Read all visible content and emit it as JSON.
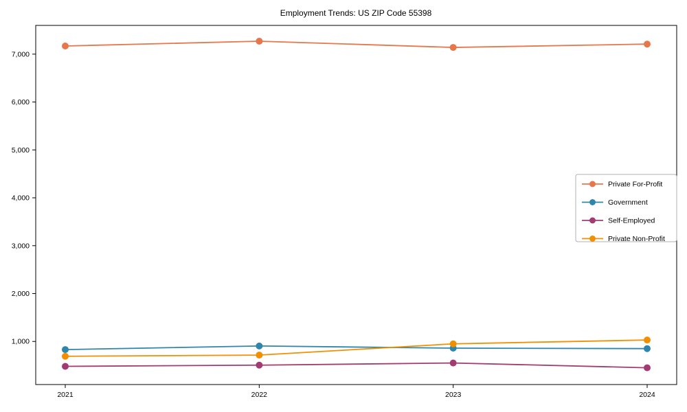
{
  "chart_data": {
    "type": "line",
    "title": "Employment Trends: US ZIP Code 55398",
    "x_labels": [
      "2021",
      "2022",
      "2023",
      "2024"
    ],
    "series": [
      {
        "name": "Private For-Profit",
        "color": "#e8764b",
        "values": [
          7170,
          7270,
          7140,
          7210
        ]
      },
      {
        "name": "Government",
        "color": "#2e86ab",
        "values": [
          830,
          905,
          860,
          850
        ]
      },
      {
        "name": "Self-Employed",
        "color": "#a23b72",
        "values": [
          480,
          505,
          550,
          450
        ]
      },
      {
        "name": "Private Non-Profit",
        "color": "#f18f01",
        "values": [
          690,
          715,
          950,
          1030
        ]
      }
    ],
    "xlabel": "",
    "ylabel": "",
    "ylim": [
      100,
      7600
    ],
    "yticks": [
      1000,
      2000,
      3000,
      4000,
      5000,
      6000,
      7000
    ],
    "ytick_labels": [
      "1,000",
      "2,000",
      "3,000",
      "4,000",
      "5,000",
      "6,000",
      "7,000"
    ],
    "grid": false,
    "legend_position": "center-right",
    "marker": "circle",
    "axis_color": "#000000",
    "legend_border_color": "#b0b0b0",
    "legend_background": "#ffffff"
  }
}
